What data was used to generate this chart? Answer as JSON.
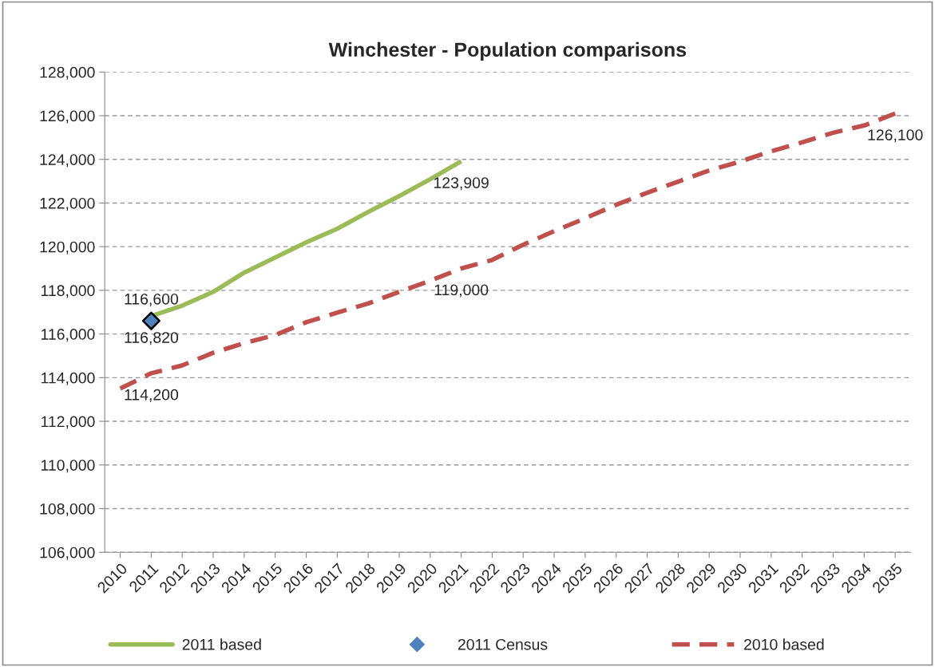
{
  "chart_data": {
    "type": "line",
    "title": "Winchester - Population comparisons",
    "categories": [
      "2010",
      "2011",
      "2012",
      "2013",
      "2014",
      "2015",
      "2016",
      "2017",
      "2018",
      "2019",
      "2020",
      "2021",
      "2022",
      "2023",
      "2024",
      "2025",
      "2026",
      "2027",
      "2028",
      "2029",
      "2030",
      "2031",
      "2032",
      "2033",
      "2034",
      "2035"
    ],
    "series": [
      {
        "name": "2011 based",
        "line_style": "solid",
        "color": "#9bbb59",
        "values": [
          null,
          116820,
          117300,
          117930,
          118810,
          119500,
          120200,
          120820,
          121590,
          122320,
          123090,
          123909,
          null,
          null,
          null,
          null,
          null,
          null,
          null,
          null,
          null,
          null,
          null,
          null,
          null,
          null
        ],
        "value_labels": [
          null,
          "116,820",
          null,
          null,
          null,
          null,
          null,
          null,
          null,
          null,
          null,
          "123,909",
          null,
          null,
          null,
          null,
          null,
          null,
          null,
          null,
          null,
          null,
          null,
          null,
          null,
          null
        ]
      },
      {
        "name": "2011 Census",
        "type": "scatter",
        "marker": "diamond",
        "color": "#4f81bd",
        "values": [
          null,
          116600,
          null,
          null,
          null,
          null,
          null,
          null,
          null,
          null,
          null,
          null,
          null,
          null,
          null,
          null,
          null,
          null,
          null,
          null,
          null,
          null,
          null,
          null,
          null,
          null
        ],
        "value_labels": [
          null,
          "116,600",
          null,
          null,
          null,
          null,
          null,
          null,
          null,
          null,
          null,
          null,
          null,
          null,
          null,
          null,
          null,
          null,
          null,
          null,
          null,
          null,
          null,
          null,
          null,
          null
        ]
      },
      {
        "name": "2010 based",
        "line_style": "dashed",
        "color": "#c0504d",
        "values": [
          113500,
          114200,
          114560,
          115140,
          115580,
          115950,
          116540,
          116980,
          117400,
          117930,
          118440,
          119000,
          119390,
          120090,
          120710,
          121300,
          121920,
          122470,
          122980,
          123490,
          123900,
          124370,
          124780,
          125220,
          125550,
          126100
        ],
        "value_labels": [
          null,
          "114,200",
          null,
          null,
          null,
          null,
          null,
          null,
          null,
          null,
          null,
          "119,000",
          null,
          null,
          null,
          null,
          null,
          null,
          null,
          null,
          null,
          null,
          null,
          null,
          null,
          "126,100"
        ]
      }
    ],
    "ylim": [
      106000,
      128000
    ],
    "yticks": [
      {
        "value": 106000,
        "label": "106,000"
      },
      {
        "value": 108000,
        "label": "108,000"
      },
      {
        "value": 110000,
        "label": "110,000"
      },
      {
        "value": 112000,
        "label": "112,000"
      },
      {
        "value": 114000,
        "label": "114,000"
      },
      {
        "value": 116000,
        "label": "116,000"
      },
      {
        "value": 118000,
        "label": "118,000"
      },
      {
        "value": 120000,
        "label": "120,000"
      },
      {
        "value": 122000,
        "label": "122,000"
      },
      {
        "value": 124000,
        "label": "124,000"
      },
      {
        "value": 126000,
        "label": "126,000"
      },
      {
        "value": 128000,
        "label": "128,000"
      }
    ],
    "grid": "y",
    "legend": "bottom"
  }
}
